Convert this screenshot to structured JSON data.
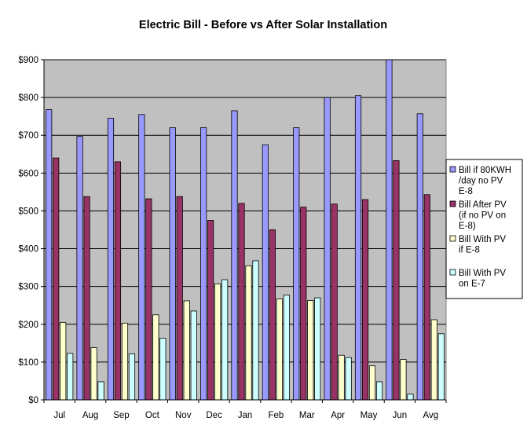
{
  "chart_data": {
    "type": "bar",
    "title": "Electric Bill  - Before vs After Solar Installation",
    "xlabel": "",
    "ylabel": "",
    "ylim": [
      0,
      900
    ],
    "ytick_step": 100,
    "ytick_labels": [
      "$0",
      "$100",
      "$200",
      "$300",
      "$400",
      "$500",
      "$600",
      "$700",
      "$800",
      "$900"
    ],
    "grid": true,
    "legend_position": "right",
    "plot_background": "#c0c0c0",
    "categories": [
      "Jul",
      "Aug",
      "Sep",
      "Oct",
      "Nov",
      "Dec",
      "Jan",
      "Feb",
      "Mar",
      "Apr",
      "May",
      "Jun",
      "Avg"
    ],
    "series": [
      {
        "name": "Bill if 80KWH /day no PV E-8",
        "legend_lines": [
          "Bill if 80KWH",
          "/day no PV",
          "E-8"
        ],
        "color": "#9999ff",
        "values": [
          768,
          697,
          745,
          755,
          720,
          720,
          765,
          675,
          720,
          800,
          805,
          905,
          757
        ]
      },
      {
        "name": "Bill After PV (if no PV on E-8)",
        "legend_lines": [
          "Bill After PV",
          "(if no PV on",
          "E-8)"
        ],
        "color": "#993366",
        "values": [
          640,
          538,
          630,
          532,
          538,
          475,
          520,
          450,
          510,
          518,
          530,
          633,
          543
        ]
      },
      {
        "name": "Bill With PV if E-8",
        "legend_lines": [
          "Bill With PV",
          "if E-8"
        ],
        "color": "#ffffcc",
        "values": [
          205,
          138,
          203,
          225,
          262,
          307,
          355,
          267,
          263,
          118,
          90,
          107,
          212
        ]
      },
      {
        "name": "Bill With PV on E-7",
        "legend_lines": [
          "Bill With PV",
          "on E-7"
        ],
        "color": "#ccffff",
        "values": [
          123,
          48,
          122,
          163,
          235,
          318,
          368,
          277,
          270,
          112,
          48,
          15,
          175
        ]
      }
    ]
  }
}
